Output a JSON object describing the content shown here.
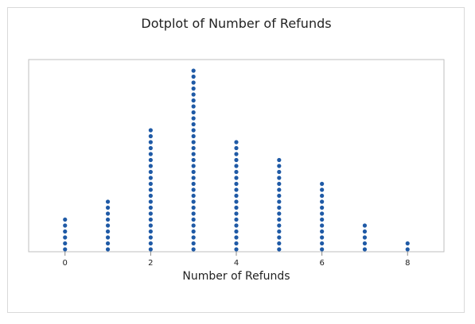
{
  "chart_data": {
    "type": "scatter",
    "subtype": "dotplot",
    "title": "Dotplot of Number of Refunds",
    "xlabel": "Number of Refunds",
    "ylabel": "",
    "xlim": [
      -0.85,
      8.85
    ],
    "xticks": [
      0,
      2,
      4,
      6,
      8
    ],
    "grid": false,
    "dot_color": "#1f5aa6",
    "points": [
      {
        "x": 0,
        "count": 6
      },
      {
        "x": 1,
        "count": 9
      },
      {
        "x": 2,
        "count": 21
      },
      {
        "x": 3,
        "count": 31
      },
      {
        "x": 4,
        "count": 19
      },
      {
        "x": 5,
        "count": 16
      },
      {
        "x": 6,
        "count": 12
      },
      {
        "x": 7,
        "count": 5
      },
      {
        "x": 8,
        "count": 2
      }
    ]
  }
}
